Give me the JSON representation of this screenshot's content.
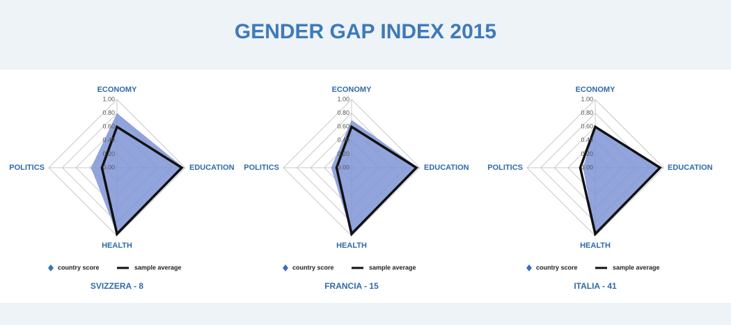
{
  "title": "GENDER GAP INDEX 2015",
  "chart_data": [
    {
      "type": "radar",
      "subtitle": "SVIZZERA - 8",
      "categories": [
        "ECONOMY",
        "EDUCATION",
        "HEALTH",
        "POLITICS"
      ],
      "series": [
        {
          "name": "country score",
          "color": "#7f94d6",
          "values": [
            0.8,
            0.98,
            0.97,
            0.38
          ]
        },
        {
          "name": "sample average",
          "color": "#111111",
          "values": [
            0.6,
            0.95,
            0.97,
            0.22
          ]
        }
      ],
      "ylim": [
        0,
        1
      ],
      "yticks": [
        {
          "value": 0,
          "label": "0.00"
        },
        {
          "value": 0.2,
          "label": "0.20"
        },
        {
          "value": 0.4,
          "label": "0.40"
        },
        {
          "value": 0.6,
          "label": "0.60"
        },
        {
          "value": 0.8,
          "label": "0.80"
        },
        {
          "value": 1,
          "label": "1.00"
        }
      ]
    },
    {
      "type": "radar",
      "subtitle": "FRANCIA - 15",
      "categories": [
        "ECONOMY",
        "EDUCATION",
        "HEALTH",
        "POLITICS"
      ],
      "series": [
        {
          "name": "country score",
          "color": "#7f94d6",
          "values": [
            0.7,
            0.98,
            0.97,
            0.3
          ]
        },
        {
          "name": "sample average",
          "color": "#111111",
          "values": [
            0.6,
            0.95,
            0.97,
            0.22
          ]
        }
      ],
      "ylim": [
        0,
        1
      ],
      "yticks": [
        {
          "value": 0,
          "label": "0.00"
        },
        {
          "value": 0.2,
          "label": "0.20"
        },
        {
          "value": 0.4,
          "label": "0.40"
        },
        {
          "value": 0.6,
          "label": "0.60"
        },
        {
          "value": 0.8,
          "label": "0.80"
        },
        {
          "value": 1,
          "label": "1.00"
        }
      ]
    },
    {
      "type": "radar",
      "subtitle": "ITALIA - 41",
      "categories": [
        "ECONOMY",
        "EDUCATION",
        "HEALTH",
        "POLITICS"
      ],
      "series": [
        {
          "name": "country score",
          "color": "#7f94d6",
          "values": [
            0.61,
            0.96,
            0.97,
            0.18
          ]
        },
        {
          "name": "sample average",
          "color": "#111111",
          "values": [
            0.6,
            0.95,
            0.97,
            0.22
          ]
        }
      ],
      "ylim": [
        0,
        1
      ],
      "yticks": [
        {
          "value": 0,
          "label": "0.00"
        },
        {
          "value": 0.2,
          "label": "0.20"
        },
        {
          "value": 0.4,
          "label": "0.40"
        },
        {
          "value": 0.6,
          "label": "0.60"
        },
        {
          "value": 0.8,
          "label": "0.80"
        },
        {
          "value": 1,
          "label": "1.00"
        }
      ]
    }
  ]
}
